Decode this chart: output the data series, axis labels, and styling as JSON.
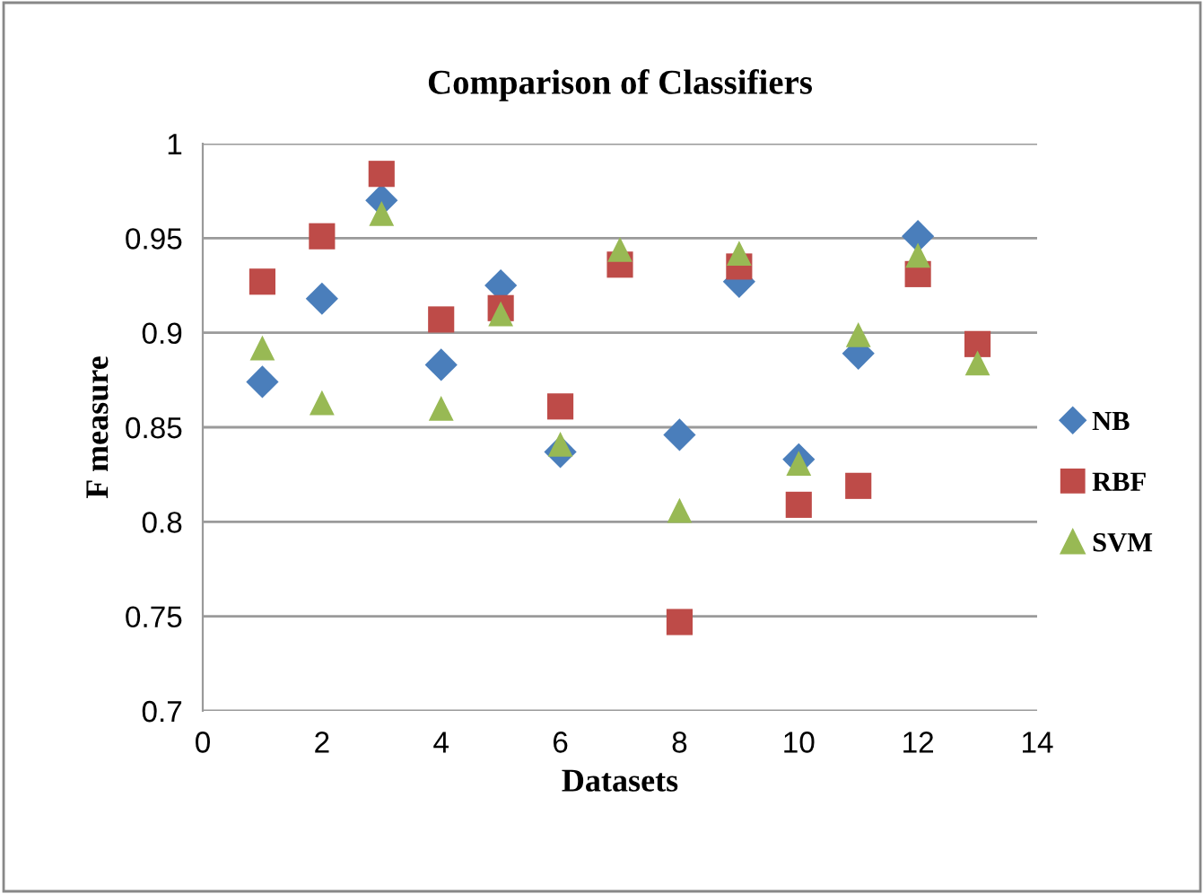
{
  "chart_data": {
    "type": "scatter",
    "title": "Comparison of Classifiers",
    "xlabel": "Datasets",
    "ylabel": "F measure",
    "x": [
      1,
      2,
      3,
      4,
      5,
      6,
      7,
      8,
      9,
      10,
      11,
      12,
      13
    ],
    "series": [
      {
        "name": "NB",
        "color": "#4a7ebb",
        "marker": "diamond",
        "values": [
          0.874,
          0.918,
          0.97,
          0.883,
          0.925,
          0.837,
          null,
          0.846,
          0.927,
          0.833,
          0.889,
          0.951,
          null
        ]
      },
      {
        "name": "RBF",
        "color": "#be4b48",
        "marker": "square",
        "values": [
          0.927,
          0.951,
          0.984,
          0.907,
          0.913,
          0.861,
          0.936,
          0.747,
          0.935,
          0.809,
          0.819,
          0.931,
          0.894
        ]
      },
      {
        "name": "SVM",
        "color": "#98b954",
        "marker": "triangle",
        "values": [
          0.892,
          0.863,
          0.963,
          0.86,
          0.91,
          0.841,
          0.944,
          0.806,
          0.942,
          0.831,
          0.899,
          0.941,
          0.884
        ]
      }
    ],
    "xlim": [
      0,
      14
    ],
    "xticks": [
      0,
      2,
      4,
      6,
      8,
      10,
      12,
      14
    ],
    "ylim": [
      0.7,
      1
    ],
    "yticks": [
      0.7,
      0.75,
      0.8,
      0.85,
      0.9,
      0.95,
      1
    ],
    "grid": "y",
    "legend": "right"
  }
}
